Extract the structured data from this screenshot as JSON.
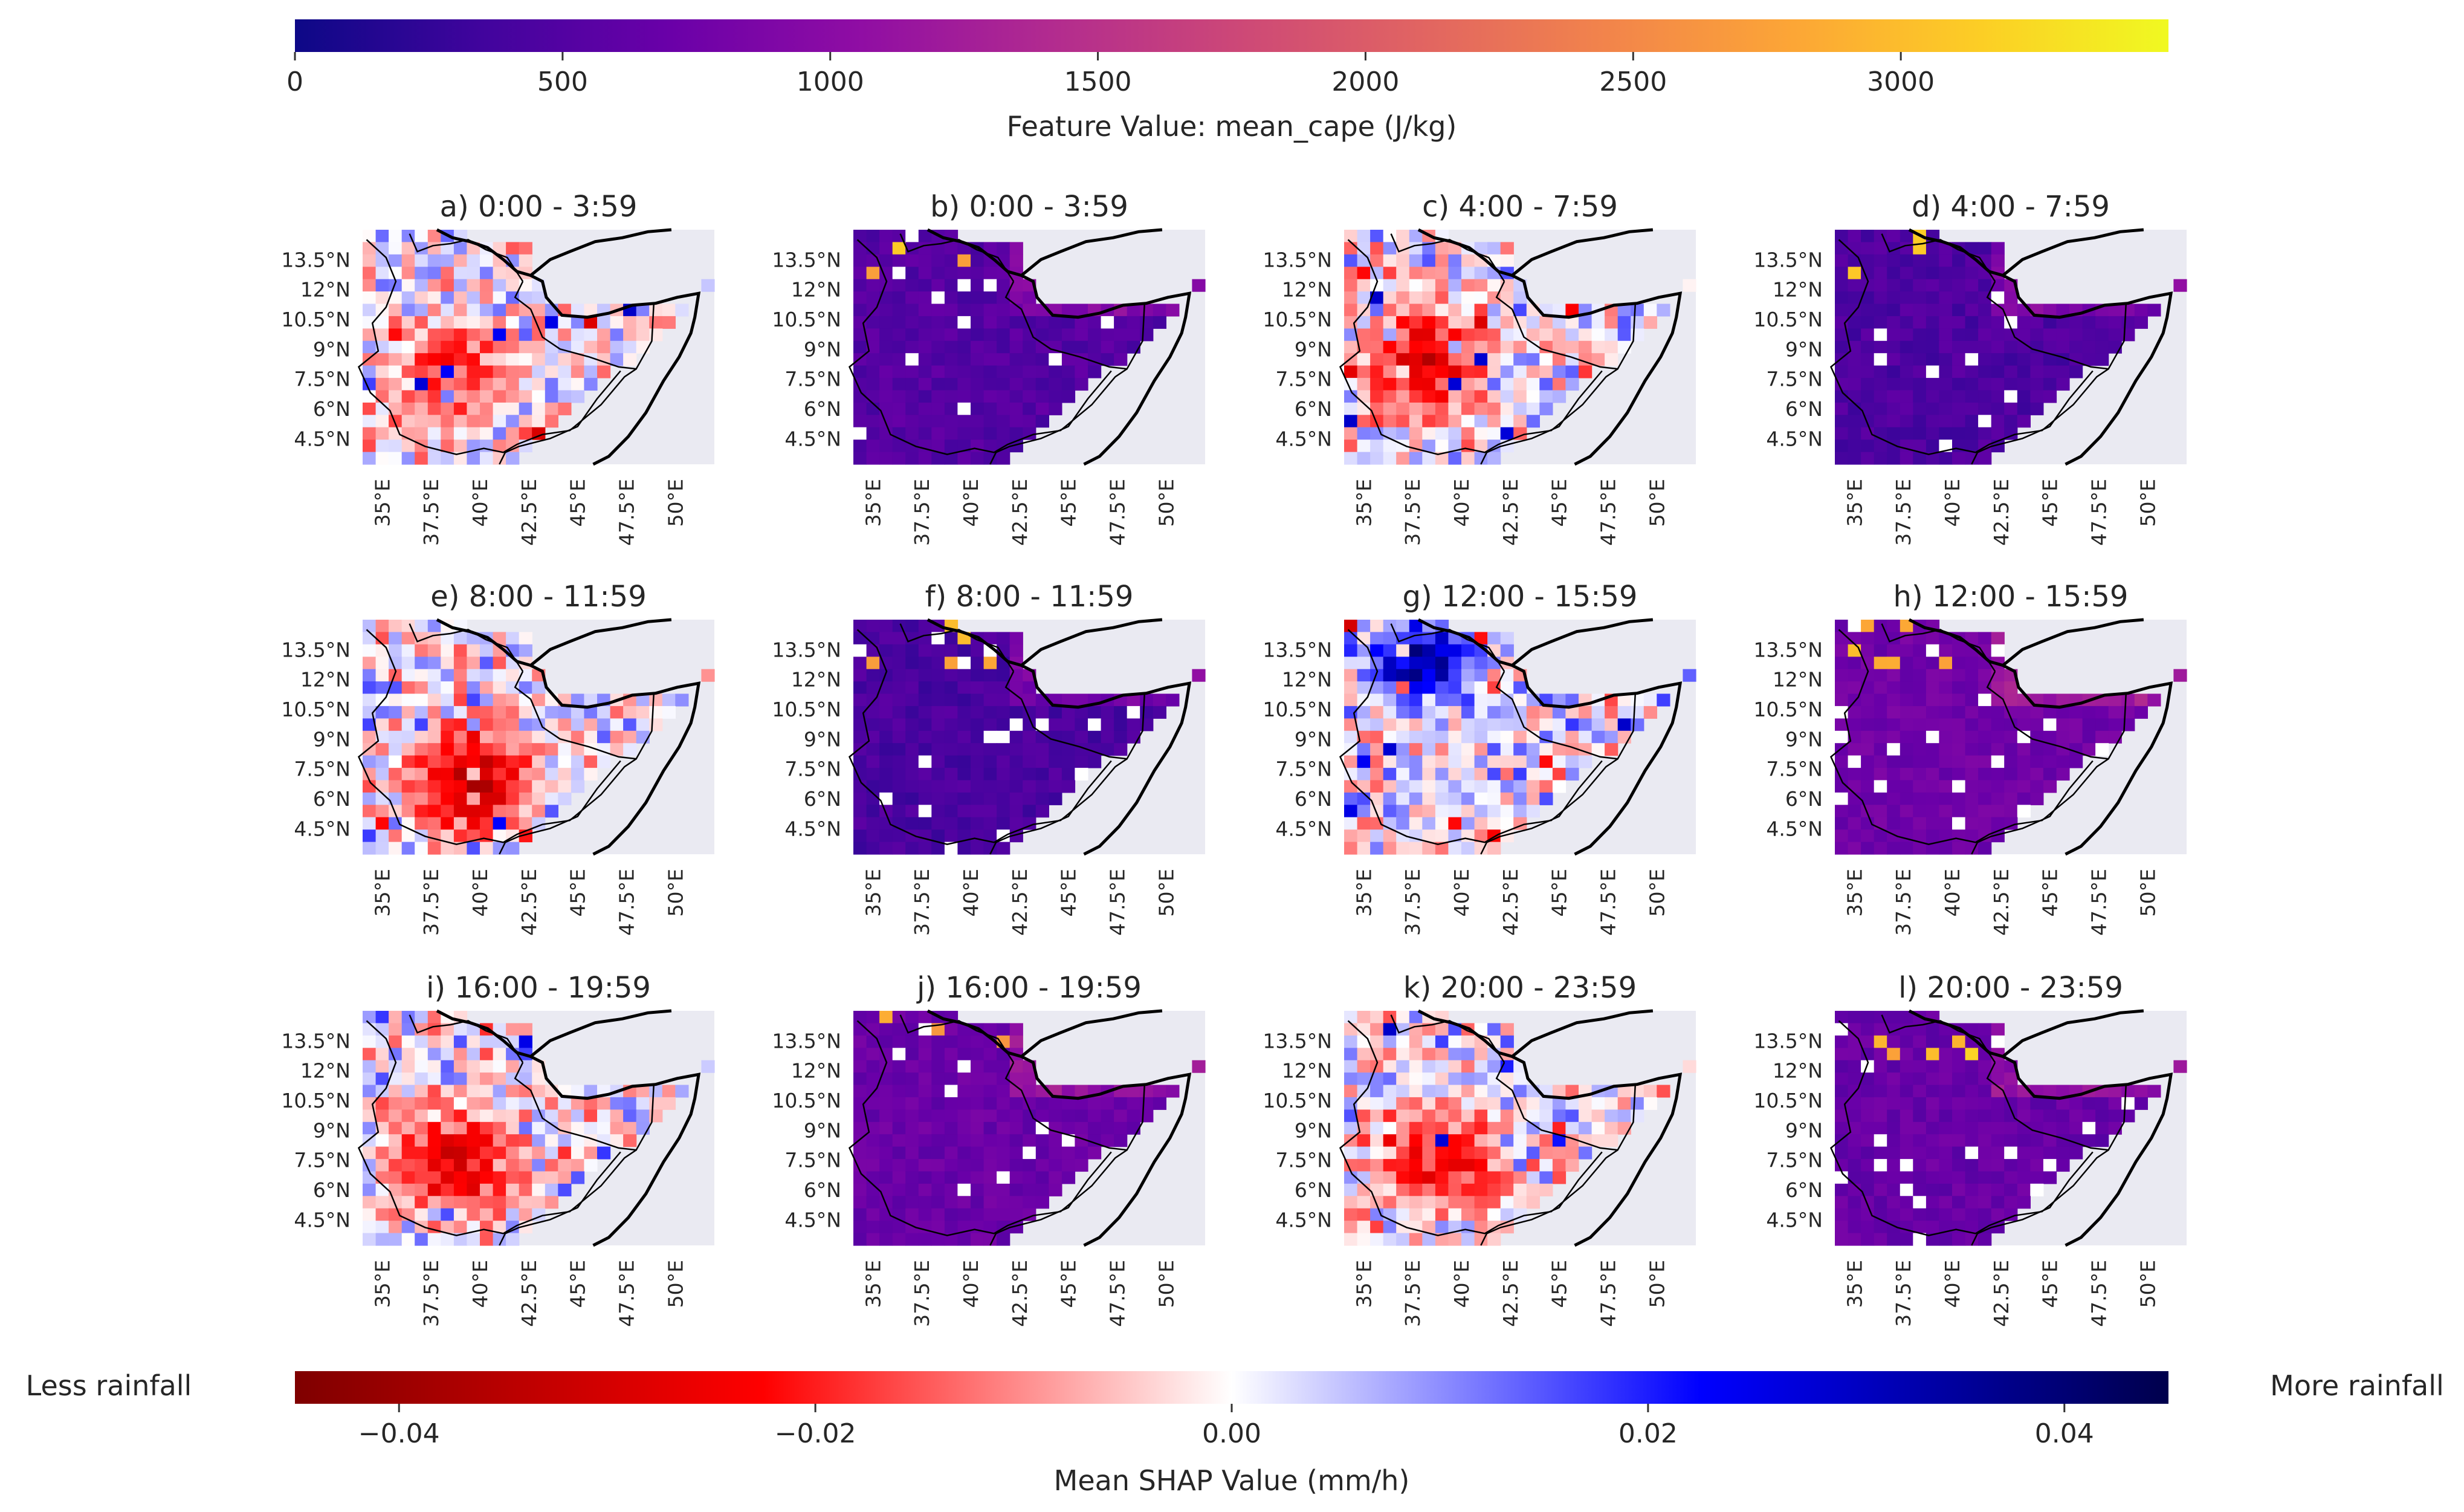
{
  "chart_data": {
    "type": "heatmap",
    "colorbars": {
      "top": {
        "label": "Feature Value: mean_cape (J/kg)",
        "colormap": "plasma",
        "range": [
          0,
          3500
        ],
        "ticks": [
          0,
          500,
          1000,
          1500,
          2000,
          2500,
          3000
        ],
        "tick_labels": [
          "0",
          "500",
          "1000",
          "1500",
          "2000",
          "2500",
          "3000"
        ],
        "stops": [
          "#0d0887",
          "#41049d",
          "#6a00a8",
          "#8f0da4",
          "#b12a90",
          "#cc4778",
          "#e16462",
          "#f2844b",
          "#fca636",
          "#fcce25",
          "#f0f921"
        ]
      },
      "bottom": {
        "label": "Mean SHAP Value (mm/h)",
        "colormap": "seismic_r",
        "range": [
          -0.045,
          0.045
        ],
        "ticks": [
          -0.04,
          -0.02,
          0.0,
          0.02,
          0.04
        ],
        "tick_labels": [
          "−0.04",
          "−0.02",
          "0.00",
          "0.02",
          "0.04"
        ],
        "stops": [
          "#7f0000",
          "#ff0000",
          "#ffffff",
          "#0000ff",
          "#00004c"
        ],
        "left_annotation": "Less rainfall",
        "right_annotation": "More rainfall"
      }
    },
    "axes": {
      "x_ticks": [
        "35°E",
        "37.5°E",
        "40°E",
        "42.5°E",
        "45°E",
        "47.5°E",
        "50°E"
      ],
      "x_values": [
        35,
        37.5,
        40,
        42.5,
        45,
        47.5,
        50
      ],
      "y_ticks": [
        "13.5°N",
        "12°N",
        "10.5°N",
        "9°N",
        "7.5°N",
        "6°N",
        "4.5°N"
      ],
      "y_values": [
        13.5,
        12,
        10.5,
        9,
        7.5,
        6,
        4.5
      ],
      "xlim": [
        34,
        52
      ],
      "ylim": [
        3.2,
        15
      ]
    },
    "panels": [
      {
        "title": "a) 0:00 - 3:59",
        "kind": "shap",
        "max_abs_shap": 0.02,
        "hotspot_lon": 38.8,
        "hotspot_lat": 7.8
      },
      {
        "title": "b) 0:00 - 3:59",
        "kind": "cape",
        "typical_cape": 520
      },
      {
        "title": "c) 4:00 - 7:59",
        "kind": "shap",
        "max_abs_shap": 0.03,
        "hotspot_lon": 38.2,
        "hotspot_lat": 8.3
      },
      {
        "title": "d) 4:00 - 7:59",
        "kind": "cape",
        "typical_cape": 460
      },
      {
        "title": "e) 8:00 - 11:59",
        "kind": "shap",
        "max_abs_shap": 0.035,
        "hotspot_lon": 39.5,
        "hotspot_lat": 7.0
      },
      {
        "title": "f) 8:00 - 11:59",
        "kind": "cape",
        "typical_cape": 430
      },
      {
        "title": "g) 12:00 - 15:59",
        "kind": "shap",
        "max_abs_shap": 0.04,
        "hotspot_lon": 38.0,
        "hotspot_lat": 12.8
      },
      {
        "title": "h) 12:00 - 15:59",
        "kind": "cape",
        "typical_cape": 760
      },
      {
        "title": "i) 16:00 - 19:59",
        "kind": "shap",
        "max_abs_shap": 0.03,
        "hotspot_lon": 38.8,
        "hotspot_lat": 7.2
      },
      {
        "title": "j) 16:00 - 19:59",
        "kind": "cape",
        "typical_cape": 700
      },
      {
        "title": "k) 20:00 - 23:59",
        "kind": "shap",
        "max_abs_shap": 0.025,
        "hotspot_lon": 39.0,
        "hotspot_lat": 7.5
      },
      {
        "title": "l) 20:00 - 23:59",
        "kind": "cape",
        "typical_cape": 680
      }
    ],
    "grid": false
  }
}
